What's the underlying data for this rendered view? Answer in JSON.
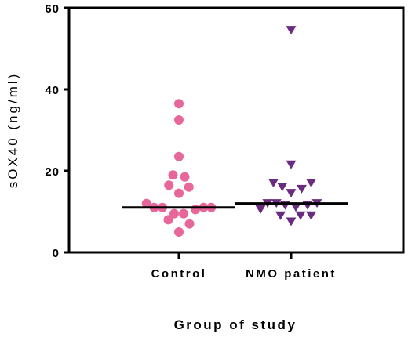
{
  "chart_data": {
    "type": "scatter",
    "title": "",
    "xlabel": "Group of study",
    "ylabel": "sOX40 (ng/ml)",
    "ylim": [
      0,
      60
    ],
    "yticks": [
      0,
      20,
      40,
      60
    ],
    "categories": [
      "Control",
      "NMO patient"
    ],
    "grid": false,
    "series": [
      {
        "category": "Control",
        "marker": "circle",
        "color": "#e8679a",
        "median": 11,
        "points": [
          {
            "offset": 0.0,
            "y": 36.5
          },
          {
            "offset": 0.0,
            "y": 32.5
          },
          {
            "offset": 0.0,
            "y": 23.5
          },
          {
            "offset": -0.1,
            "y": 19.0
          },
          {
            "offset": 0.1,
            "y": 18.5
          },
          {
            "offset": -0.17,
            "y": 16.5
          },
          {
            "offset": 0.17,
            "y": 16.0
          },
          {
            "offset": 0.0,
            "y": 14.5
          },
          {
            "offset": -0.55,
            "y": 12.0
          },
          {
            "offset": -0.42,
            "y": 11.0
          },
          {
            "offset": -0.28,
            "y": 11.0
          },
          {
            "offset": 0.28,
            "y": 10.5
          },
          {
            "offset": 0.42,
            "y": 11.0
          },
          {
            "offset": 0.55,
            "y": 11.0
          },
          {
            "offset": -0.08,
            "y": 9.5
          },
          {
            "offset": 0.08,
            "y": 9.5
          },
          {
            "offset": -0.18,
            "y": 8.0
          },
          {
            "offset": 0.18,
            "y": 7.0
          },
          {
            "offset": 0.0,
            "y": 5.0
          }
        ]
      },
      {
        "category": "NMO patient",
        "marker": "triangle-down",
        "color": "#6b2c80",
        "median": 12,
        "points": [
          {
            "offset": 0.0,
            "y": 54.5
          },
          {
            "offset": 0.0,
            "y": 21.5
          },
          {
            "offset": -0.3,
            "y": 17.0
          },
          {
            "offset": -0.15,
            "y": 16.0
          },
          {
            "offset": 0.34,
            "y": 17.0
          },
          {
            "offset": 0.18,
            "y": 15.5
          },
          {
            "offset": 0.0,
            "y": 14.5
          },
          {
            "offset": -0.4,
            "y": 12.0
          },
          {
            "offset": -0.25,
            "y": 12.0
          },
          {
            "offset": -0.1,
            "y": 11.5
          },
          {
            "offset": 0.28,
            "y": 11.5
          },
          {
            "offset": 0.44,
            "y": 12.0
          },
          {
            "offset": -0.52,
            "y": 10.5
          },
          {
            "offset": 0.08,
            "y": 11.0
          },
          {
            "offset": -0.18,
            "y": 9.0
          },
          {
            "offset": 0.16,
            "y": 9.0
          },
          {
            "offset": 0.34,
            "y": 9.0
          },
          {
            "offset": 0.0,
            "y": 7.5
          }
        ]
      }
    ]
  }
}
